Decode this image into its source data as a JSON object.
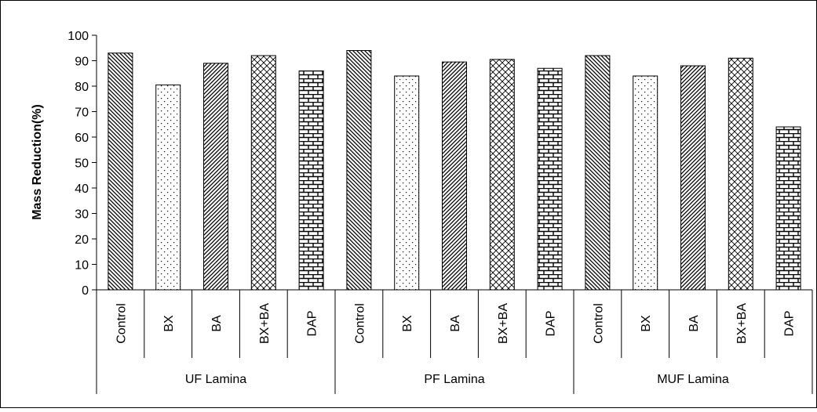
{
  "chart_data": {
    "type": "bar",
    "title": "",
    "xlabel": "",
    "ylabel": "Mass Reduction(%)",
    "ylim": [
      0,
      100
    ],
    "yticks": [
      0,
      10,
      20,
      30,
      40,
      50,
      60,
      70,
      80,
      90,
      100
    ],
    "grid": false,
    "legend": "none",
    "groups": [
      {
        "label": "UF Lamina",
        "bars": [
          {
            "category": "Control",
            "value": 93,
            "pattern": "diag-back"
          },
          {
            "category": "BX",
            "value": 80.5,
            "pattern": "dots"
          },
          {
            "category": "BA",
            "value": 89,
            "pattern": "diag-fwd"
          },
          {
            "category": "BX+BA",
            "value": 92,
            "pattern": "cross"
          },
          {
            "category": "DAP",
            "value": 86,
            "pattern": "brick"
          }
        ]
      },
      {
        "label": "PF Lamina",
        "bars": [
          {
            "category": "Control",
            "value": 94,
            "pattern": "diag-back"
          },
          {
            "category": "BX",
            "value": 84,
            "pattern": "dots"
          },
          {
            "category": "BA",
            "value": 89.5,
            "pattern": "diag-fwd"
          },
          {
            "category": "BX+BA",
            "value": 90.5,
            "pattern": "cross"
          },
          {
            "category": "DAP",
            "value": 87,
            "pattern": "brick"
          }
        ]
      },
      {
        "label": "MUF Lamina",
        "bars": [
          {
            "category": "Control",
            "value": 92,
            "pattern": "diag-back"
          },
          {
            "category": "BX",
            "value": 84,
            "pattern": "dots"
          },
          {
            "category": "BA",
            "value": 88,
            "pattern": "diag-fwd"
          },
          {
            "category": "BX+BA",
            "value": 91,
            "pattern": "cross"
          },
          {
            "category": "DAP",
            "value": 64,
            "pattern": "brick"
          }
        ]
      }
    ]
  }
}
